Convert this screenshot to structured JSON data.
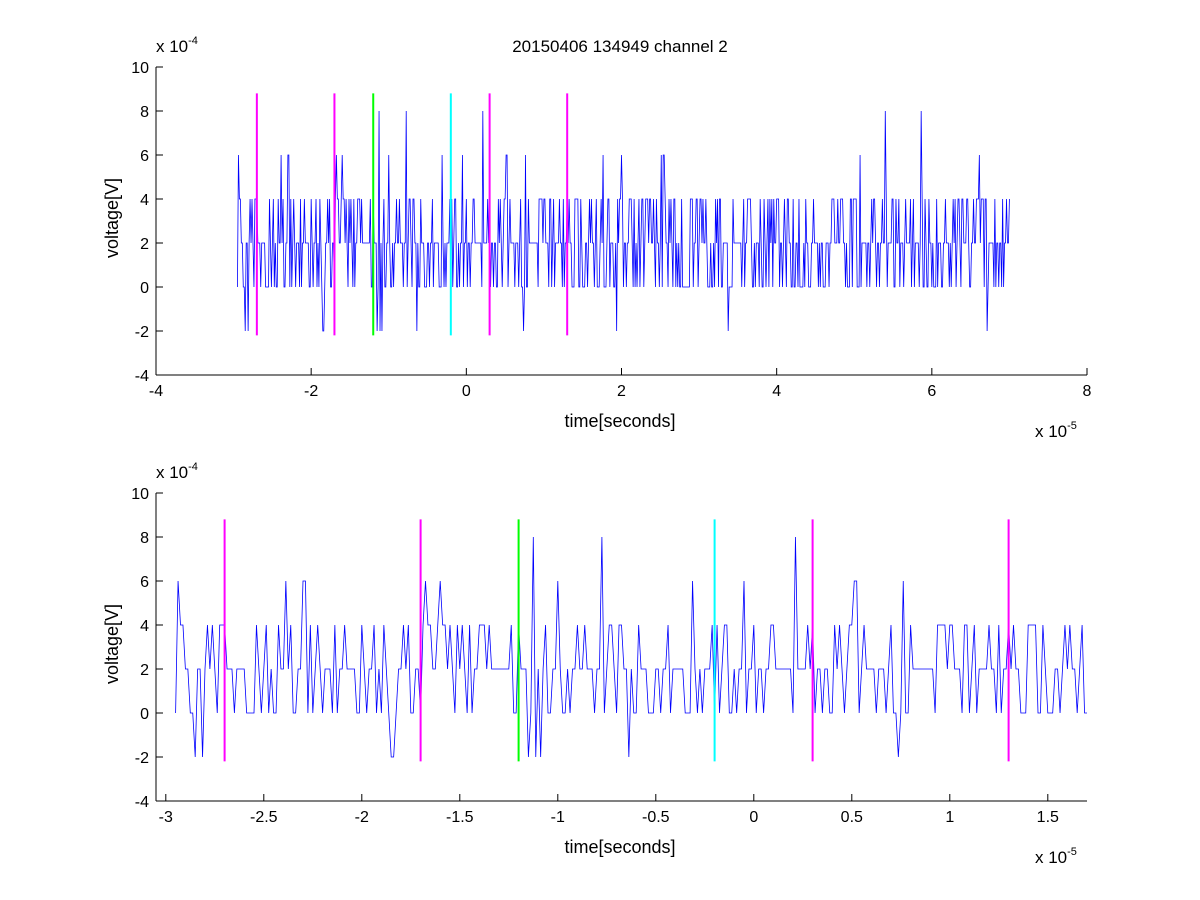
{
  "figure": {
    "title": "20150406 134949 channel 2"
  },
  "chart_data": [
    {
      "type": "line",
      "title": "20150406 134949 channel 2",
      "xlabel": "time[seconds]",
      "ylabel": "voltage[V]",
      "x_multiplier": {
        "base": "x 10",
        "exponent": "-5"
      },
      "y_multiplier": {
        "base": "x 10",
        "exponent": "-4"
      },
      "xlim": [
        -4,
        8
      ],
      "ylim": [
        -4,
        10
      ],
      "xticks": [
        -4,
        -2,
        0,
        2,
        4,
        6,
        8
      ],
      "xtick_labels": [
        "-4",
        "-2",
        "0",
        "2",
        "4",
        "6",
        "8"
      ],
      "yticks": [
        -4,
        -2,
        0,
        2,
        4,
        6,
        8,
        10
      ],
      "ytick_labels": [
        "-4",
        "-2",
        "0",
        "2",
        "4",
        "6",
        "8",
        "10"
      ],
      "grid": false,
      "series_color": "#0000ff",
      "signal": {
        "x_start": -2.95,
        "x_end": 7.0,
        "levels": [
          -2,
          0,
          2,
          4,
          6,
          8
        ],
        "baseline": 2
      },
      "markers": [
        {
          "x": -2.7,
          "color": "#ff00ff",
          "y_range": [
            -2.2,
            8.8
          ]
        },
        {
          "x": -1.7,
          "color": "#ff00ff",
          "y_range": [
            -2.2,
            8.8
          ]
        },
        {
          "x": -1.2,
          "color": "#00ff00",
          "y_range": [
            -2.2,
            8.8
          ]
        },
        {
          "x": -0.2,
          "color": "#00ffff",
          "y_range": [
            -2.2,
            8.8
          ]
        },
        {
          "x": 0.3,
          "color": "#ff00ff",
          "y_range": [
            -2.2,
            8.8
          ]
        },
        {
          "x": 1.3,
          "color": "#ff00ff",
          "y_range": [
            -2.2,
            8.8
          ]
        }
      ]
    },
    {
      "type": "line",
      "title": "",
      "xlabel": "time[seconds]",
      "ylabel": "voltage[V]",
      "x_multiplier": {
        "base": "x 10",
        "exponent": "-5"
      },
      "y_multiplier": {
        "base": "x 10",
        "exponent": "-4"
      },
      "xlim": [
        -3.05,
        1.7
      ],
      "ylim": [
        -4,
        10
      ],
      "xticks": [
        -3,
        -2.5,
        -2,
        -1.5,
        -1,
        -0.5,
        0,
        0.5,
        1,
        1.5
      ],
      "xtick_labels": [
        "-3",
        "-2.5",
        "-2",
        "-1.5",
        "-1",
        "-0.5",
        "0",
        "0.5",
        "1",
        "1.5"
      ],
      "yticks": [
        -4,
        -2,
        0,
        2,
        4,
        6,
        8,
        10
      ],
      "ytick_labels": [
        "-4",
        "-2",
        "0",
        "2",
        "4",
        "6",
        "8",
        "10"
      ],
      "grid": false,
      "series_color": "#0000ff",
      "signal": {
        "x_start": -2.95,
        "x_end": 1.7,
        "levels": [
          -2,
          0,
          2,
          4,
          6,
          8
        ],
        "baseline": 2
      },
      "markers": [
        {
          "x": -2.7,
          "color": "#ff00ff",
          "y_range": [
            -2.2,
            8.8
          ]
        },
        {
          "x": -1.7,
          "color": "#ff00ff",
          "y_range": [
            -2.2,
            8.8
          ]
        },
        {
          "x": -1.2,
          "color": "#00ff00",
          "y_range": [
            -2.2,
            8.8
          ]
        },
        {
          "x": -0.2,
          "color": "#00ffff",
          "y_range": [
            -2.2,
            8.8
          ]
        },
        {
          "x": 0.3,
          "color": "#ff00ff",
          "y_range": [
            -2.2,
            8.8
          ]
        },
        {
          "x": 1.3,
          "color": "#ff00ff",
          "y_range": [
            -2.2,
            8.8
          ]
        }
      ]
    }
  ]
}
